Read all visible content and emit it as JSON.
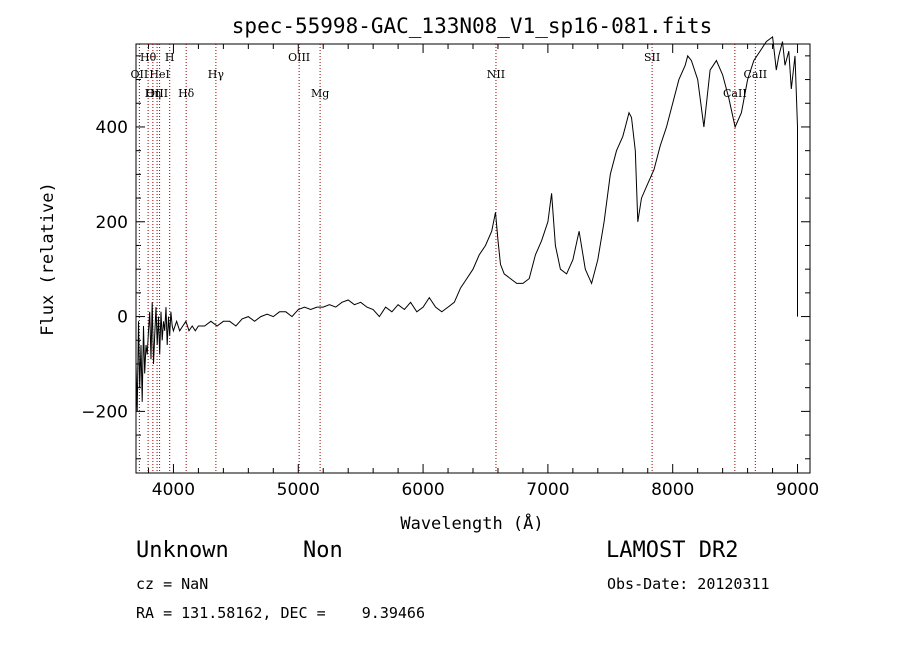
{
  "chart_data": {
    "type": "line",
    "title": "spec-55998-GAC_133N08_V1_sp16-081.fits",
    "xlabel": "Wavelength (Å)",
    "ylabel": "Flux (relative)",
    "xlim": [
      3700,
      9100
    ],
    "ylim": [
      -330,
      575
    ],
    "x_ticks": [
      4000,
      5000,
      6000,
      7000,
      8000,
      9000
    ],
    "y_ticks": [
      -200,
      0,
      200,
      400
    ],
    "line_color": "#000000",
    "marker_color": "#990000",
    "series": [
      {
        "x": [
          3700,
          3710,
          3720,
          3730,
          3740,
          3750,
          3760,
          3770,
          3780,
          3790,
          3800,
          3810,
          3820,
          3830,
          3840,
          3850,
          3860,
          3870,
          3880,
          3890,
          3900,
          3910,
          3920,
          3930,
          3940,
          3950,
          3960,
          3970,
          3980,
          3990,
          4000,
          4025,
          4050,
          4075,
          4100,
          4125,
          4150,
          4175,
          4200,
          4250,
          4300,
          4350,
          4400,
          4450,
          4500,
          4550,
          4600,
          4650,
          4700,
          4750,
          4800,
          4850,
          4900,
          4950,
          5000,
          5050,
          5100,
          5150,
          5200,
          5250,
          5300,
          5350,
          5400,
          5450,
          5500,
          5550,
          5600,
          5650,
          5700,
          5750,
          5800,
          5850,
          5900,
          5950,
          6000,
          6050,
          6100,
          6150,
          6200,
          6250,
          6300,
          6350,
          6400,
          6450,
          6500,
          6550,
          6580,
          6600,
          6620,
          6650,
          6700,
          6750,
          6800,
          6850,
          6900,
          6950,
          7000,
          7030,
          7060,
          7100,
          7150,
          7200,
          7250,
          7300,
          7350,
          7400,
          7450,
          7500,
          7550,
          7600,
          7620,
          7650,
          7670,
          7700,
          7720,
          7750,
          7800,
          7850,
          7900,
          7950,
          8000,
          8050,
          8100,
          8120,
          8150,
          8200,
          8250,
          8300,
          8350,
          8400,
          8450,
          8500,
          8550,
          8600,
          8650,
          8700,
          8750,
          8800,
          8830,
          8850,
          8880,
          8900,
          8930,
          8950,
          8980,
          9000,
          9000
        ],
        "y": [
          -100,
          -200,
          -10,
          -150,
          -60,
          -180,
          -20,
          -120,
          -60,
          -80,
          -30,
          10,
          -90,
          30,
          -100,
          -40,
          20,
          -60,
          0,
          -80,
          10,
          -50,
          -10,
          -30,
          20,
          -60,
          0,
          -40,
          10,
          -20,
          -30,
          -10,
          -30,
          -20,
          -10,
          -30,
          -20,
          -30,
          -20,
          -20,
          -10,
          -20,
          -10,
          -10,
          -20,
          -5,
          0,
          -10,
          0,
          5,
          0,
          10,
          10,
          0,
          15,
          20,
          15,
          20,
          20,
          25,
          20,
          30,
          35,
          25,
          30,
          20,
          15,
          0,
          20,
          10,
          25,
          15,
          30,
          10,
          20,
          40,
          20,
          10,
          20,
          30,
          60,
          80,
          100,
          130,
          150,
          180,
          220,
          160,
          110,
          90,
          80,
          70,
          70,
          80,
          130,
          160,
          200,
          260,
          150,
          100,
          90,
          120,
          180,
          100,
          70,
          120,
          200,
          300,
          350,
          380,
          400,
          430,
          420,
          350,
          200,
          250,
          280,
          310,
          360,
          400,
          450,
          500,
          530,
          550,
          540,
          500,
          400,
          520,
          540,
          510,
          460,
          400,
          430,
          500,
          540,
          560,
          580,
          590,
          520,
          550,
          580,
          530,
          560,
          480,
          550,
          400,
          0
        ]
      }
    ],
    "line_markers": [
      {
        "label": "Hθ",
        "x": 3797,
        "row": 1
      },
      {
        "label": "H",
        "x": 3970,
        "row": 1
      },
      {
        "label": "OII",
        "x": 3727,
        "row": 2
      },
      {
        "label": "HeI",
        "x": 3889,
        "row": 2
      },
      {
        "label": "OIII",
        "x": 3869,
        "row": 3
      },
      {
        "label": "Hη",
        "x": 3835,
        "row": 3
      },
      {
        "label": "Hγ",
        "x": 4340,
        "row": 2
      },
      {
        "label": "Hδ",
        "x": 4102,
        "row": 3
      },
      {
        "label": "OIII",
        "x": 5007,
        "row": 1
      },
      {
        "label": "Mg",
        "x": 5175,
        "row": 3
      },
      {
        "label": "NII",
        "x": 6584,
        "row": 2
      },
      {
        "label": "SII",
        "x": 7835,
        "row": 1
      },
      {
        "label": "CaII",
        "x": 8662,
        "row": 2
      },
      {
        "label": "CaII",
        "x": 8498,
        "row": 3
      }
    ]
  },
  "info": {
    "class_label": "Unknown",
    "subclass_label": "Non",
    "survey": "LAMOST DR2",
    "cz": "cz = NaN",
    "obs_date": "Obs-Date: 20120311",
    "coords": "RA = 131.58162, DEC =    9.39466"
  }
}
